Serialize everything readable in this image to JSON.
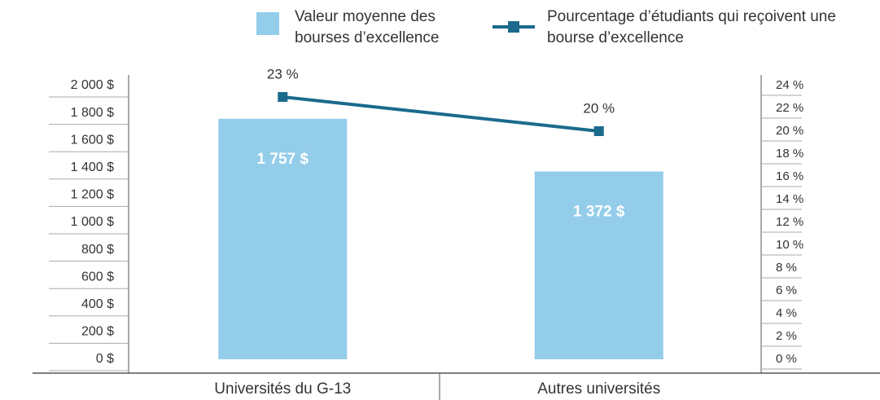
{
  "chart_data": {
    "type": "bar",
    "categories": [
      "Universités du G-13",
      "Autres universités"
    ],
    "series": [
      {
        "name": "Valeur moyenne des bourses d’excellence",
        "type": "bar",
        "color": "#93cdea",
        "values": [
          1757,
          1372
        ],
        "value_labels": [
          "1 757 $",
          "1 372 $"
        ]
      },
      {
        "name": "Pourcentage d’étudiants qui reçoivent une bourse d’excellence",
        "type": "line",
        "axis": "y2",
        "color": "#1b6a8d",
        "values": [
          23,
          20
        ],
        "value_labels": [
          "23 %",
          "20 %"
        ]
      }
    ],
    "ylim": [
      0,
      2000
    ],
    "yticks": [
      {
        "value": 0,
        "label": "0 $"
      },
      {
        "value": 200,
        "label": "200 $"
      },
      {
        "value": 400,
        "label": "400 $"
      },
      {
        "value": 600,
        "label": "600 $"
      },
      {
        "value": 800,
        "label": "800 $"
      },
      {
        "value": 1000,
        "label": "1 000 $"
      },
      {
        "value": 1200,
        "label": "1 200 $"
      },
      {
        "value": 1400,
        "label": "1 400 $"
      },
      {
        "value": 1600,
        "label": "1 600 $"
      },
      {
        "value": 1800,
        "label": "1 800 $"
      },
      {
        "value": 2000,
        "label": "2 000 $"
      }
    ],
    "y2lim": [
      0,
      24
    ],
    "y2ticks": [
      {
        "value": 0,
        "label": "0 %"
      },
      {
        "value": 2,
        "label": "2 %"
      },
      {
        "value": 4,
        "label": "4 %"
      },
      {
        "value": 6,
        "label": "6 %"
      },
      {
        "value": 8,
        "label": "8 %"
      },
      {
        "value": 10,
        "label": "10 %"
      },
      {
        "value": 12,
        "label": "12 %"
      },
      {
        "value": 14,
        "label": "14 %"
      },
      {
        "value": 16,
        "label": "16 %"
      },
      {
        "value": 18,
        "label": "18 %"
      },
      {
        "value": 20,
        "label": "20 %"
      },
      {
        "value": 22,
        "label": "22 %"
      },
      {
        "value": 24,
        "label": "24 %"
      }
    ]
  }
}
